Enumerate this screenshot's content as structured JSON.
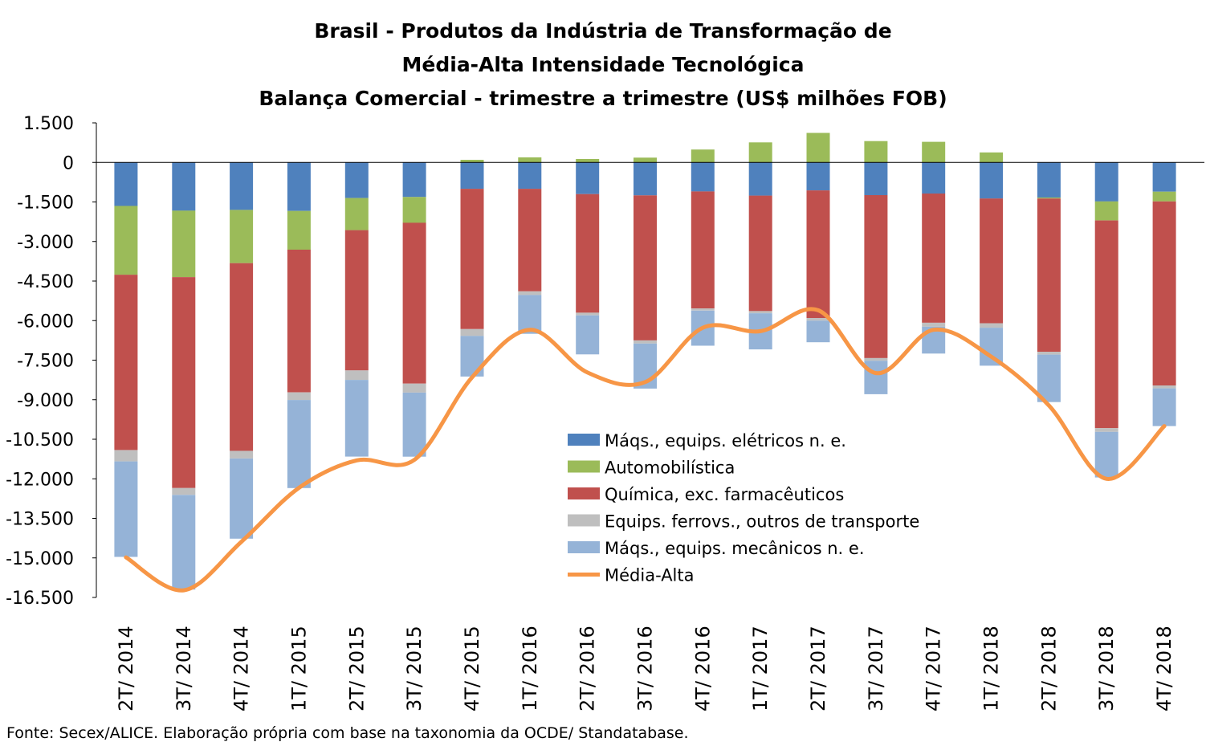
{
  "chart_data": {
    "type": "bar",
    "stacked": true,
    "title": [
      "Brasil - Produtos da Indústria de Transformação de",
      "Média-Alta Intensidade Tecnológica",
      "Balança Comercial - trimestre a trimestre (US$ milhões FOB)"
    ],
    "categories": [
      "2T/ 2014",
      "3T/ 2014",
      "4T/ 2014",
      "1T/ 2015",
      "2T/ 2015",
      "3T/ 2015",
      "4T/ 2015",
      "1T/ 2016",
      "2T/ 2016",
      "3T/ 2016",
      "4T/ 2016",
      "1T/ 2017",
      "2T/ 2017",
      "3T/ 2017",
      "4T/ 2017",
      "1T/ 2018",
      "2T/ 2018",
      "3T/ 2018",
      "4T/ 2018"
    ],
    "ylim": [
      -16500,
      1500
    ],
    "yticks": [
      1500,
      0,
      -1500,
      -3000,
      -4500,
      -6000,
      -7500,
      -9000,
      -10500,
      -12000,
      -13500,
      -15000,
      -16500
    ],
    "ytick_labels": [
      "1.500",
      "0",
      "-1.500",
      "-3.000",
      "-4.500",
      "-6.000",
      "-7.500",
      "-9.000",
      "-10.500",
      "-12.000",
      "-13.500",
      "-15.000",
      "-16.500"
    ],
    "series": [
      {
        "name": "Máqs., equips. elétricos n. e.",
        "color": "#4F81BD",
        "values": [
          -1650,
          -1830,
          -1800,
          -1840,
          -1350,
          -1310,
          -1000,
          -1000,
          -1200,
          -1250,
          -1100,
          -1260,
          -1060,
          -1240,
          -1180,
          -1370,
          -1330,
          -1480,
          -1110
        ]
      },
      {
        "name": "Automobilística",
        "color": "#9BBB59",
        "values": [
          -2610,
          -2520,
          -2020,
          -1470,
          -1220,
          -980,
          100,
          190,
          130,
          180,
          490,
          760,
          1120,
          810,
          780,
          380,
          -40,
          -720,
          -370
        ]
      },
      {
        "name": "Química, exc. farmacêuticos",
        "color": "#C0504D",
        "values": [
          -6650,
          -8000,
          -7120,
          -5410,
          -5320,
          -6100,
          -5320,
          -3890,
          -4500,
          -5500,
          -4440,
          -4380,
          -4840,
          -6180,
          -4900,
          -4730,
          -5810,
          -7880,
          -6980
        ]
      },
      {
        "name": "Equips. ferrovs., outros de transporte",
        "color": "#BFBFBF",
        "values": [
          -430,
          -260,
          -290,
          -290,
          -360,
          -340,
          -260,
          -140,
          -100,
          -120,
          -80,
          -80,
          -100,
          -100,
          -150,
          -170,
          -110,
          -140,
          -110
        ]
      },
      {
        "name": "Máqs., equips. mecânicos  n. e.",
        "color": "#95B3D7",
        "values": [
          -3620,
          -3590,
          -3040,
          -3340,
          -2910,
          -2430,
          -1540,
          -1470,
          -1480,
          -1710,
          -1330,
          -1370,
          -820,
          -1270,
          -1020,
          -1440,
          -1800,
          -1730,
          -1430
        ]
      }
    ],
    "line": {
      "name": "Média-Alta",
      "color": "#F79646",
      "values": [
        -14980,
        -16230,
        -14390,
        -12340,
        -11300,
        -11280,
        -8150,
        -6350,
        -7970,
        -8330,
        -6270,
        -6400,
        -5610,
        -7990,
        -6350,
        -7370,
        -9220,
        -12000,
        -10000
      ]
    },
    "legend_position": "center-right",
    "grid": false
  },
  "footer": {
    "source": "Fonte: Secex/ALICE. Elaboração própria com base na taxonomia da OCDE/ Standatabase."
  }
}
